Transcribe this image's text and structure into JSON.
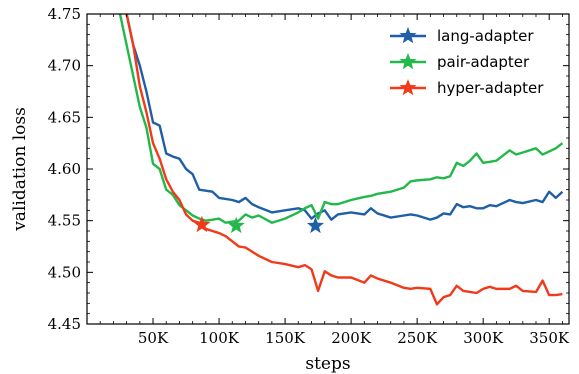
{
  "chart_data": {
    "type": "line",
    "title": "",
    "xlabel": "steps",
    "ylabel": "validation loss",
    "xlim": [
      0,
      365000
    ],
    "ylim": [
      4.45,
      4.75
    ],
    "xticks": [
      50000,
      100000,
      150000,
      200000,
      250000,
      300000,
      350000
    ],
    "xtick_labels": [
      "50K",
      "100K",
      "150K",
      "200K",
      "250K",
      "300K",
      "350K"
    ],
    "yticks": [
      4.45,
      4.5,
      4.55,
      4.6,
      4.65,
      4.7,
      4.75
    ],
    "ytick_labels": [
      "4.45",
      "4.50",
      "4.55",
      "4.60",
      "4.65",
      "4.70",
      "4.75"
    ],
    "grid": false,
    "legend_position": "top-right",
    "series": [
      {
        "name": "lang-adapter",
        "color": "#1f5fa8",
        "x": [
          25000,
          30000,
          35000,
          40000,
          45000,
          50000,
          55000,
          60000,
          65000,
          70000,
          75000,
          80000,
          85000,
          90000,
          95000,
          100000,
          105000,
          110000,
          115000,
          120000,
          125000,
          130000,
          140000,
          150000,
          160000,
          165000,
          170000,
          175000,
          180000,
          185000,
          190000,
          200000,
          210000,
          215000,
          220000,
          230000,
          240000,
          245000,
          250000,
          260000,
          265000,
          270000,
          275000,
          280000,
          285000,
          290000,
          295000,
          300000,
          305000,
          310000,
          320000,
          325000,
          330000,
          340000,
          345000,
          350000,
          355000,
          360000
        ],
        "y": [
          4.76,
          4.75,
          4.72,
          4.7,
          4.675,
          4.645,
          4.642,
          4.615,
          4.612,
          4.61,
          4.6,
          4.595,
          4.58,
          4.579,
          4.578,
          4.572,
          4.571,
          4.57,
          4.568,
          4.572,
          4.566,
          4.563,
          4.558,
          4.56,
          4.562,
          4.56,
          4.552,
          4.557,
          4.56,
          4.551,
          4.556,
          4.558,
          4.556,
          4.562,
          4.557,
          4.553,
          4.555,
          4.556,
          4.555,
          4.551,
          4.553,
          4.557,
          4.556,
          4.566,
          4.563,
          4.564,
          4.562,
          4.562,
          4.565,
          4.564,
          4.57,
          4.568,
          4.567,
          4.57,
          4.568,
          4.578,
          4.572,
          4.578
        ],
        "marker": {
          "x": 173000,
          "y": 4.545
        }
      },
      {
        "name": "pair-adapter",
        "color": "#22b84a",
        "x": [
          25000,
          30000,
          35000,
          40000,
          45000,
          50000,
          55000,
          60000,
          65000,
          70000,
          75000,
          80000,
          85000,
          90000,
          95000,
          100000,
          105000,
          110000,
          115000,
          120000,
          125000,
          130000,
          140000,
          150000,
          160000,
          165000,
          170000,
          175000,
          180000,
          185000,
          190000,
          200000,
          210000,
          215000,
          220000,
          230000,
          240000,
          245000,
          250000,
          260000,
          265000,
          270000,
          275000,
          280000,
          285000,
          290000,
          295000,
          300000,
          305000,
          310000,
          320000,
          325000,
          330000,
          340000,
          345000,
          350000,
          355000,
          360000
        ],
        "y": [
          4.75,
          4.72,
          4.69,
          4.66,
          4.64,
          4.605,
          4.6,
          4.58,
          4.575,
          4.565,
          4.56,
          4.555,
          4.552,
          4.55,
          4.551,
          4.552,
          4.548,
          4.549,
          4.55,
          4.556,
          4.553,
          4.555,
          4.548,
          4.552,
          4.558,
          4.562,
          4.565,
          4.552,
          4.568,
          4.566,
          4.566,
          4.57,
          4.573,
          4.574,
          4.576,
          4.578,
          4.582,
          4.588,
          4.589,
          4.59,
          4.592,
          4.591,
          4.593,
          4.606,
          4.603,
          4.608,
          4.615,
          4.606,
          4.607,
          4.608,
          4.618,
          4.614,
          4.616,
          4.62,
          4.614,
          4.617,
          4.62,
          4.625
        ],
        "marker": {
          "x": 113000,
          "y": 4.545
        }
      },
      {
        "name": "hyper-adapter",
        "color": "#f03a1a",
        "x": [
          25000,
          30000,
          35000,
          40000,
          45000,
          50000,
          55000,
          60000,
          65000,
          70000,
          75000,
          80000,
          85000,
          90000,
          95000,
          100000,
          105000,
          110000,
          115000,
          120000,
          125000,
          130000,
          140000,
          150000,
          160000,
          165000,
          170000,
          175000,
          180000,
          185000,
          190000,
          200000,
          210000,
          215000,
          220000,
          230000,
          240000,
          245000,
          250000,
          260000,
          265000,
          270000,
          275000,
          280000,
          285000,
          290000,
          295000,
          300000,
          305000,
          310000,
          320000,
          325000,
          330000,
          340000,
          345000,
          350000,
          355000,
          360000
        ],
        "y": [
          4.76,
          4.75,
          4.72,
          4.68,
          4.655,
          4.625,
          4.61,
          4.59,
          4.578,
          4.57,
          4.556,
          4.55,
          4.548,
          4.542,
          4.54,
          4.538,
          4.535,
          4.53,
          4.525,
          4.524,
          4.52,
          4.516,
          4.51,
          4.508,
          4.505,
          4.507,
          4.503,
          4.482,
          4.501,
          4.497,
          4.495,
          4.495,
          4.49,
          4.497,
          4.494,
          4.49,
          4.485,
          4.484,
          4.485,
          4.484,
          4.469,
          4.476,
          4.478,
          4.487,
          4.482,
          4.481,
          4.48,
          4.484,
          4.486,
          4.484,
          4.484,
          4.487,
          4.482,
          4.481,
          4.492,
          4.478,
          4.478,
          4.479
        ],
        "marker": {
          "x": 87000,
          "y": 4.546
        }
      }
    ]
  }
}
